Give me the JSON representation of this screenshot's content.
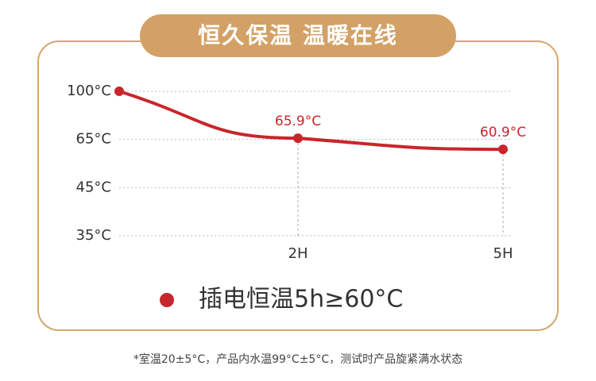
{
  "chart_data": {
    "type": "line",
    "title": "恒久保温 温暖在线",
    "categories": [
      null,
      "2H",
      "5H"
    ],
    "series": [
      {
        "name": "插电恒温5h≥60°C",
        "color": "#c8262c",
        "values": [
          100,
          65.9,
          60.9
        ],
        "value_labels": [
          null,
          "65.9°C",
          "60.9°C"
        ]
      }
    ],
    "ylim": [
      35,
      100
    ],
    "yticks": [
      {
        "value": 35,
        "label": "35°C"
      },
      {
        "value": 45,
        "label": "45°C"
      },
      {
        "value": 65,
        "label": "65°C"
      },
      {
        "value": 100,
        "label": "100°C"
      }
    ],
    "grid": true,
    "footnote": "*室温20±5°C，产品内水温99°C±5°C，测试时产品旋紧满水状态"
  }
}
